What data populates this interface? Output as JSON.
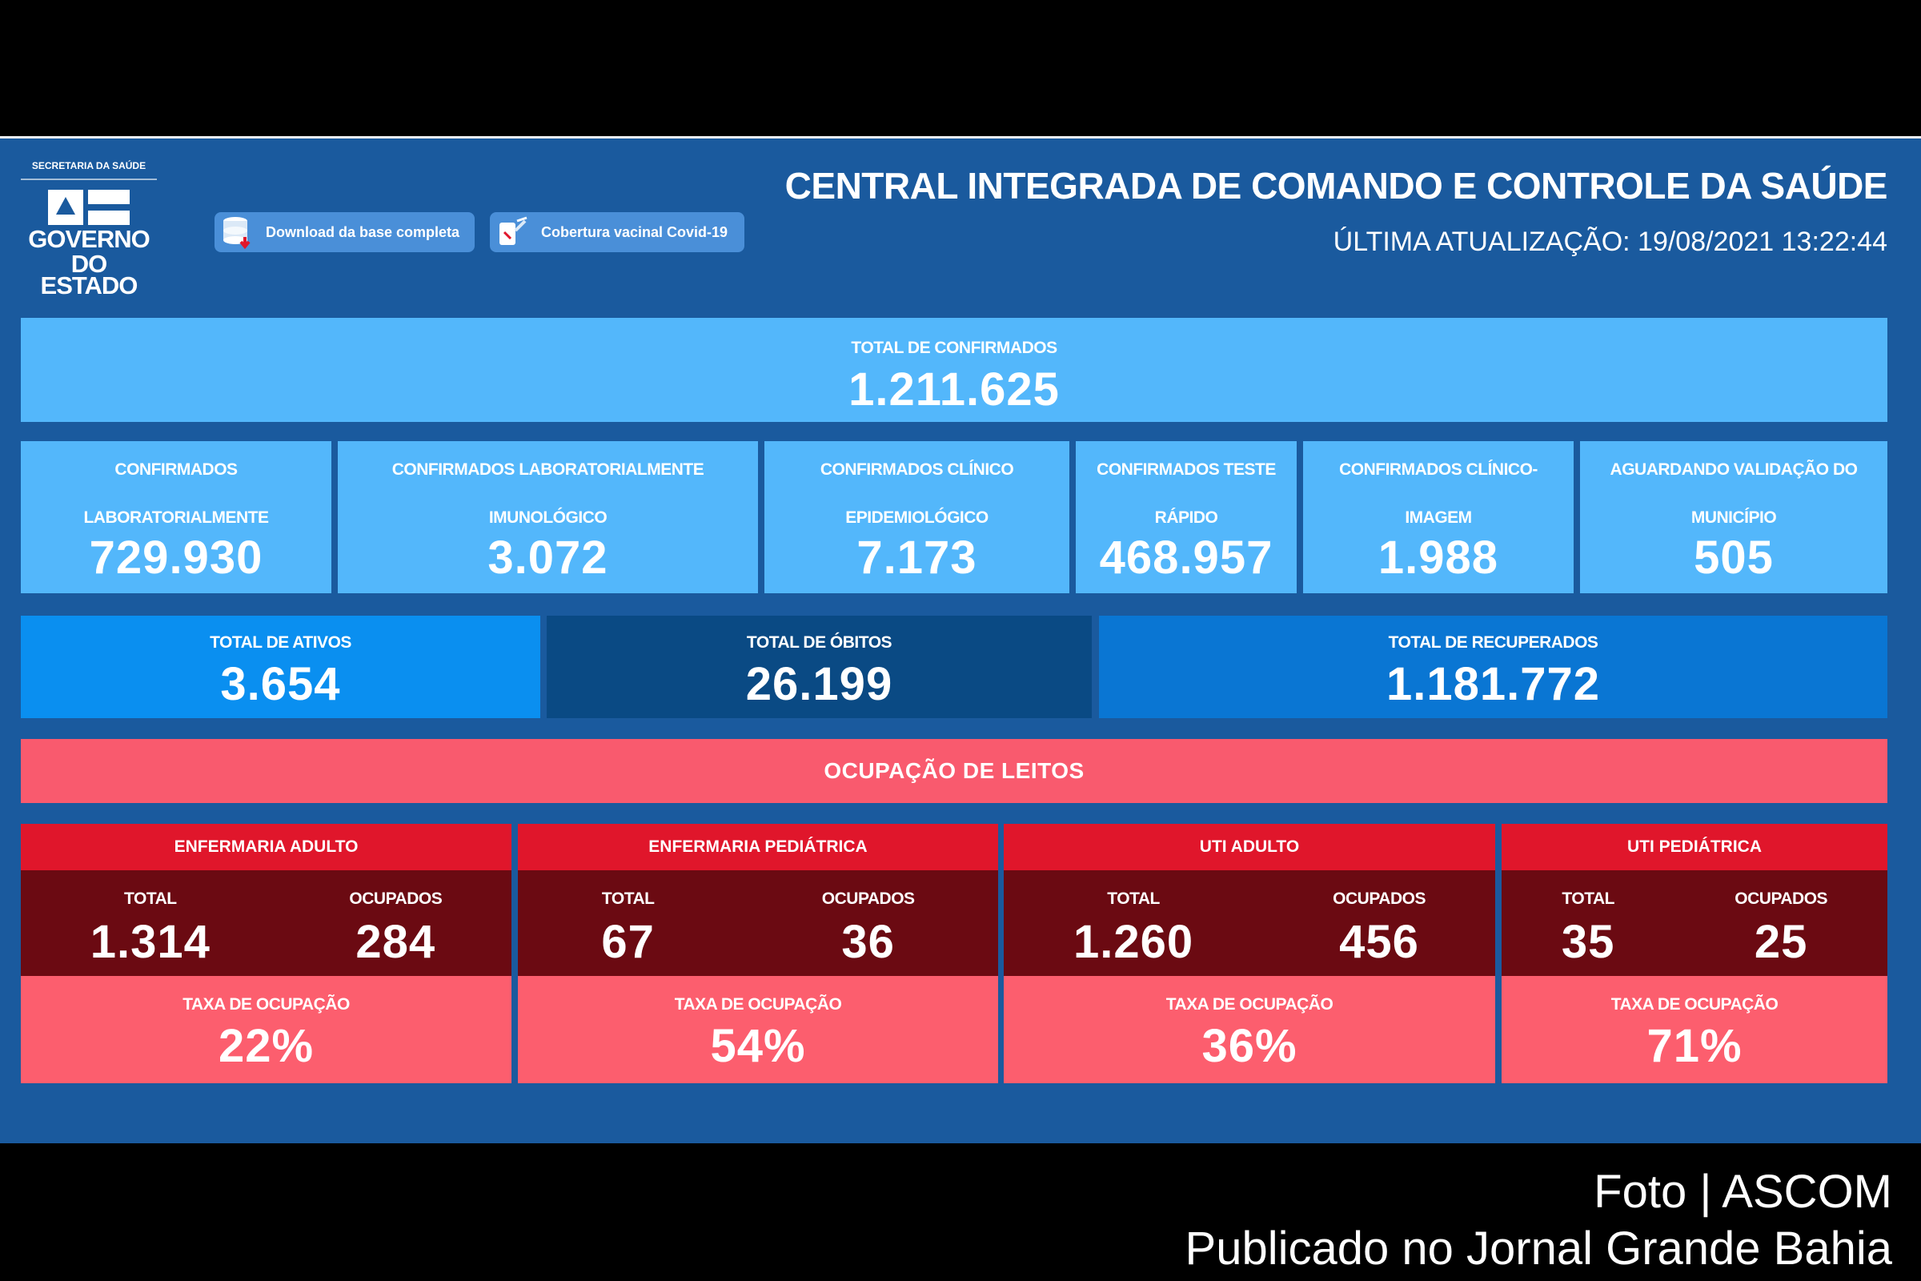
{
  "header": {
    "logo": {
      "secretaria": "SECRETARIA DA SAÚDE",
      "governo": "GOVERNO",
      "estado": "DO ESTADO"
    },
    "buttons": {
      "download": "Download da base completa",
      "vaccine": "Cobertura vacinal Covid-19"
    },
    "title": "CENTRAL INTEGRADA DE COMANDO E CONTROLE DA SAÚDE",
    "last_update": "ÚLTIMA ATUALIZAÇÃO: 19/08/2021 13:22:44"
  },
  "totals": {
    "confirmed_label": "TOTAL DE CONFIRMADOS",
    "confirmed_value": "1.211.625"
  },
  "breakdown": [
    {
      "line1": "CONFIRMADOS",
      "line2": "LABORATORIALMENTE",
      "value": "729.930"
    },
    {
      "line1": "CONFIRMADOS LABORATORIALMENTE",
      "line2": "IMUNOLÓGICO",
      "value": "3.072"
    },
    {
      "line1": "CONFIRMADOS CLÍNICO",
      "line2": "EPIDEMIOLÓGICO",
      "value": "7.173"
    },
    {
      "line1": "CONFIRMADOS TESTE",
      "line2": "RÁPIDO",
      "value": "468.957"
    },
    {
      "line1": "CONFIRMADOS CLÍNICO-",
      "line2": "IMAGEM",
      "value": "1.988"
    },
    {
      "line1": "AGUARDANDO VALIDAÇÃO DO",
      "line2": "MUNICÍPIO",
      "value": "505"
    }
  ],
  "status": {
    "active_label": "TOTAL DE ATIVOS",
    "active_value": "3.654",
    "deaths_label": "TOTAL DE ÓBITOS",
    "deaths_value": "26.199",
    "recovered_label": "TOTAL DE RECUPERADOS",
    "recovered_value": "1.181.772"
  },
  "beds": {
    "section_title": "OCUPAÇÃO DE LEITOS",
    "total_label": "TOTAL",
    "occupied_label": "OCUPADOS",
    "rate_label": "TAXA DE OCUPAÇÃO",
    "cards": [
      {
        "name": "ENFERMARIA ADULTO",
        "total": "1.314",
        "occupied": "284",
        "rate": "22%"
      },
      {
        "name": "ENFERMARIA PEDIÁTRICA",
        "total": "67",
        "occupied": "36",
        "rate": "54%"
      },
      {
        "name": "UTI ADULTO",
        "total": "1.260",
        "occupied": "456",
        "rate": "36%"
      },
      {
        "name": "UTI PEDIÁTRICA",
        "total": "35",
        "occupied": "25",
        "rate": "71%"
      }
    ]
  },
  "credits": {
    "photo": "Foto | ASCOM",
    "published": "Publicado no Jornal Grande Bahia"
  },
  "colors": {
    "background": "#1a5a9e",
    "light_blue": "#53b7fb",
    "active": "#0a8ff0",
    "deaths": "#0a4a84",
    "recovered": "#0a76d3",
    "section_red": "#f95a6e",
    "card_head_red": "#e0162b",
    "card_dark_red": "#6b0a12"
  }
}
